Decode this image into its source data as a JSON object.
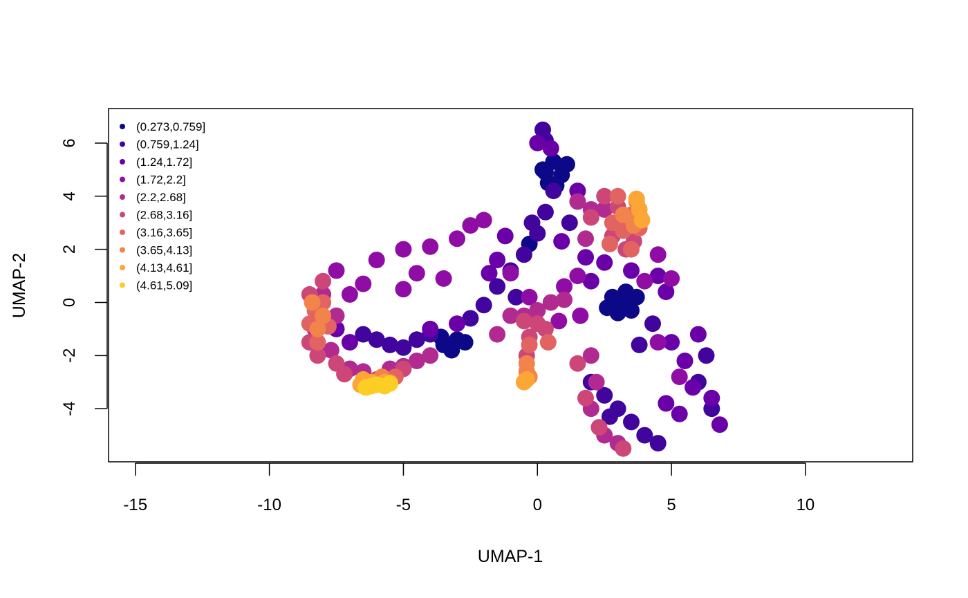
{
  "chart_data": {
    "type": "scatter",
    "title": "",
    "xlabel": "UMAP-1",
    "ylabel": "UMAP-2",
    "xlim": [
      -16,
      14
    ],
    "ylim": [
      -6,
      7.3
    ],
    "x_ticks": [
      -15,
      -10,
      -5,
      0,
      5,
      10
    ],
    "x_tick_labels": [
      "-15",
      "-10",
      "-5",
      "0",
      "5",
      "10"
    ],
    "y_ticks": [
      -4,
      -2,
      0,
      2,
      4,
      6
    ],
    "y_tick_labels": [
      "-4",
      "-2",
      "0",
      "2",
      "4",
      "6"
    ],
    "grid": false,
    "legend_position": "top-left",
    "legend": [
      {
        "label": "(0.273,0.759]",
        "color": "#0d0887"
      },
      {
        "label": "(0.759,1.24]",
        "color": "#41049d"
      },
      {
        "label": "(1.24,1.72]",
        "color": "#6a00a8"
      },
      {
        "label": "(1.72,2.2]",
        "color": "#8f0da4"
      },
      {
        "label": "(2.2,2.68]",
        "color": "#b12a90"
      },
      {
        "label": "(2.68,3.16]",
        "color": "#cc4778"
      },
      {
        "label": "(3.16,3.65]",
        "color": "#e16462"
      },
      {
        "label": "(3.65,4.13]",
        "color": "#f2844b"
      },
      {
        "label": "(4.13,4.61]",
        "color": "#fca636"
      },
      {
        "label": "(4.61,5.09]",
        "color": "#fcce25"
      }
    ],
    "series": [
      {
        "bin": 0,
        "points": [
          [
            0.2,
            5.0
          ],
          [
            0.6,
            5.3
          ],
          [
            0.9,
            4.8
          ],
          [
            0.4,
            4.5
          ],
          [
            1.1,
            5.2
          ],
          [
            0.3,
            4.9
          ],
          [
            0.7,
            4.4
          ],
          [
            -0.3,
            2.2
          ],
          [
            2.8,
            0.2
          ],
          [
            3.2,
            0.0
          ],
          [
            3.5,
            -0.3
          ],
          [
            3.0,
            -0.4
          ],
          [
            3.7,
            0.2
          ],
          [
            3.3,
            0.4
          ],
          [
            2.6,
            -0.2
          ],
          [
            -3.5,
            -1.6
          ],
          [
            -3.0,
            -1.4
          ],
          [
            -2.7,
            -1.5
          ],
          [
            -3.2,
            -1.8
          ],
          [
            -3.6,
            -1.3
          ]
        ]
      },
      {
        "bin": 1,
        "points": [
          [
            -6.5,
            -1.2
          ],
          [
            -6.0,
            -1.4
          ],
          [
            -5.5,
            -1.6
          ],
          [
            -5.0,
            -1.7
          ],
          [
            -4.5,
            -1.4
          ],
          [
            -4.0,
            -1.2
          ],
          [
            -2.5,
            -0.6
          ],
          [
            -2.0,
            -0.1
          ],
          [
            -1.5,
            0.6
          ],
          [
            -1.0,
            1.2
          ],
          [
            -0.5,
            1.8
          ],
          [
            0.0,
            2.6
          ],
          [
            0.3,
            3.4
          ],
          [
            0.6,
            4.2
          ],
          [
            0.3,
            6.1
          ],
          [
            0.2,
            6.5
          ],
          [
            2.0,
            -3.0
          ],
          [
            2.5,
            -3.5
          ],
          [
            3.0,
            -4.0
          ],
          [
            3.5,
            -4.5
          ],
          [
            4.0,
            -5.0
          ],
          [
            4.5,
            -5.3
          ],
          [
            2.7,
            -4.3
          ],
          [
            6.0,
            -3.0
          ],
          [
            6.5,
            -4.0
          ],
          [
            6.3,
            -2.0
          ],
          [
            1.2,
            3.0
          ],
          [
            -0.8,
            0.2
          ],
          [
            -0.2,
            3.0
          ],
          [
            4.3,
            -0.8
          ],
          [
            3.8,
            -1.6
          ]
        ]
      },
      {
        "bin": 2,
        "points": [
          [
            -7.5,
            -1.0
          ],
          [
            -7.0,
            -1.5
          ],
          [
            -4.0,
            -1.0
          ],
          [
            -3.0,
            -0.8
          ],
          [
            -1.5,
            1.6
          ],
          [
            -1.8,
            1.1
          ],
          [
            -1.2,
            2.5
          ],
          [
            0.0,
            6.0
          ],
          [
            0.5,
            5.8
          ],
          [
            1.5,
            4.2
          ],
          [
            1.8,
            1.7
          ],
          [
            2.5,
            1.5
          ],
          [
            3.5,
            1.2
          ],
          [
            4.5,
            1.0
          ],
          [
            4.8,
            0.4
          ],
          [
            5.0,
            -1.5
          ],
          [
            5.5,
            -2.2
          ],
          [
            6.0,
            -1.2
          ],
          [
            5.8,
            -3.2
          ],
          [
            6.5,
            -3.6
          ],
          [
            6.8,
            -4.6
          ],
          [
            5.3,
            -4.2
          ],
          [
            4.8,
            -3.8
          ],
          [
            2.0,
            0.8
          ],
          [
            0.9,
            2.3
          ]
        ]
      },
      {
        "bin": 3,
        "points": [
          [
            -6.0,
            1.6
          ],
          [
            -5.0,
            2.0
          ],
          [
            -4.0,
            2.1
          ],
          [
            -3.0,
            2.4
          ],
          [
            -2.5,
            2.9
          ],
          [
            -2.0,
            3.1
          ],
          [
            -5.0,
            0.5
          ],
          [
            -4.5,
            1.1
          ],
          [
            -3.5,
            0.9
          ],
          [
            -6.5,
            0.7
          ],
          [
            -7.5,
            1.2
          ],
          [
            -7.0,
            0.3
          ],
          [
            -1.0,
            1.1
          ],
          [
            -0.3,
            0.2
          ],
          [
            1.0,
            0.6
          ],
          [
            1.5,
            1.0
          ],
          [
            4.0,
            0.8
          ],
          [
            4.5,
            1.8
          ],
          [
            5.0,
            0.9
          ],
          [
            0.8,
            -0.7
          ],
          [
            1.6,
            -0.5
          ],
          [
            5.3,
            -2.8
          ],
          [
            4.5,
            -1.5
          ]
        ]
      },
      {
        "bin": 4,
        "points": [
          [
            -8.0,
            0.3
          ],
          [
            -7.5,
            -0.5
          ],
          [
            -7.7,
            -1.8
          ],
          [
            -7.0,
            -2.5
          ],
          [
            -6.5,
            -2.6
          ],
          [
            -5.5,
            -2.5
          ],
          [
            -5.0,
            -2.4
          ],
          [
            -4.5,
            -2.2
          ],
          [
            -4.0,
            -2.0
          ],
          [
            -1.5,
            -1.2
          ],
          [
            -1.0,
            -0.5
          ],
          [
            -0.5,
            -0.5
          ],
          [
            0.0,
            -0.3
          ],
          [
            1.5,
            3.8
          ],
          [
            2.0,
            3.5
          ],
          [
            2.5,
            3.5
          ],
          [
            1.8,
            2.4
          ],
          [
            2.0,
            -2.0
          ],
          [
            2.2,
            -3.0
          ],
          [
            2.0,
            -4.0
          ],
          [
            2.5,
            -5.0
          ],
          [
            3.0,
            -5.3
          ],
          [
            -8.3,
            -1.0
          ],
          [
            0.5,
            0.0
          ],
          [
            1.0,
            0.1
          ]
        ]
      },
      {
        "bin": 5,
        "points": [
          [
            -8.5,
            0.3
          ],
          [
            -8.5,
            -1.5
          ],
          [
            -8.2,
            -2.0
          ],
          [
            -7.5,
            -2.3
          ],
          [
            -7.2,
            -2.7
          ],
          [
            -6.0,
            -2.9
          ],
          [
            -5.0,
            -2.5
          ],
          [
            -0.5,
            -0.7
          ],
          [
            0.0,
            -0.8
          ],
          [
            -0.3,
            -1.3
          ],
          [
            2.5,
            4.0
          ],
          [
            3.0,
            3.6
          ],
          [
            2.0,
            3.2
          ],
          [
            2.8,
            2.5
          ],
          [
            3.3,
            2.0
          ],
          [
            3.6,
            2.3
          ],
          [
            0.3,
            -1.0
          ],
          [
            -0.4,
            -2.0
          ],
          [
            1.5,
            -2.3
          ],
          [
            1.8,
            -3.6
          ],
          [
            2.3,
            -4.7
          ],
          [
            3.2,
            -5.5
          ],
          [
            -8.0,
            0.8
          ]
        ]
      },
      {
        "bin": 6,
        "points": [
          [
            -8.3,
            -0.3
          ],
          [
            -8.5,
            -0.8
          ],
          [
            -8.0,
            0.0
          ],
          [
            -7.8,
            -0.9
          ],
          [
            -8.2,
            -1.5
          ],
          [
            -6.5,
            -3.0
          ],
          [
            -5.8,
            -2.9
          ],
          [
            -5.3,
            -2.8
          ],
          [
            -0.3,
            -1.6
          ],
          [
            0.4,
            -1.5
          ],
          [
            2.8,
            3.0
          ],
          [
            3.2,
            2.7
          ],
          [
            3.5,
            3.3
          ],
          [
            3.8,
            2.8
          ],
          [
            3.0,
            4.0
          ],
          [
            3.5,
            2.0
          ],
          [
            2.7,
            2.2
          ]
        ]
      },
      {
        "bin": 7,
        "points": [
          [
            -8.0,
            -0.5
          ],
          [
            -8.2,
            -1.0
          ],
          [
            -8.4,
            0.0
          ],
          [
            -6.3,
            -3.0
          ],
          [
            -5.8,
            -2.8
          ],
          [
            -5.5,
            -3.0
          ],
          [
            3.8,
            3.3
          ],
          [
            3.6,
            2.9
          ],
          [
            3.7,
            3.8
          ],
          [
            3.2,
            3.3
          ],
          [
            -0.4,
            -2.3
          ],
          [
            -0.3,
            -2.8
          ],
          [
            -0.4,
            -2.6
          ]
        ]
      },
      {
        "bin": 8,
        "points": [
          [
            -6.2,
            -3.0
          ],
          [
            -5.7,
            -3.0
          ],
          [
            -6.5,
            -2.9
          ],
          [
            -6.6,
            -3.1
          ],
          [
            3.9,
            3.1
          ],
          [
            3.8,
            3.5
          ],
          [
            3.7,
            3.9
          ],
          [
            -0.5,
            -3.0
          ],
          [
            -0.4,
            -2.9
          ]
        ]
      },
      {
        "bin": 9,
        "points": [
          [
            -6.0,
            -3.1
          ],
          [
            -6.4,
            -3.2
          ],
          [
            -6.2,
            -3.15
          ],
          [
            -5.5,
            -3.05
          ],
          [
            -5.7,
            -3.15
          ]
        ]
      }
    ]
  }
}
